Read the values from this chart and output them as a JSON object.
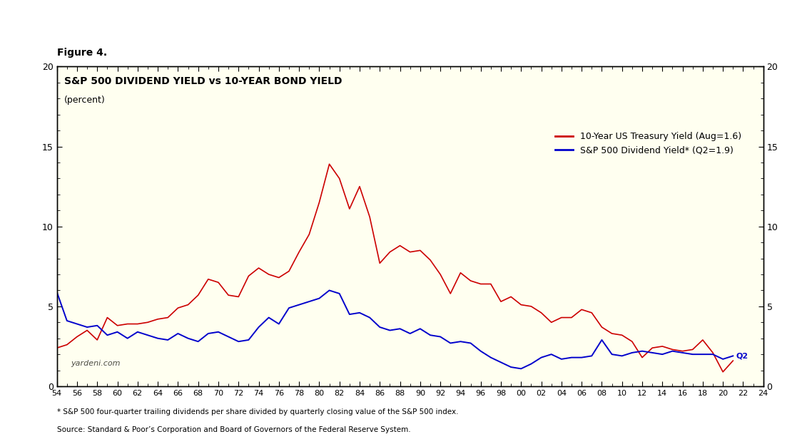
{
  "title": "Figure 4.",
  "chart_title": "S&P 500 DIVIDEND YIELD vs 10-YEAR BOND YIELD",
  "subtitle": "(percent)",
  "background_color": "#FFFFF0",
  "outer_background": "#FFFFFF",
  "xlim": [
    1954,
    2024
  ],
  "ylim": [
    0,
    20
  ],
  "xticks": [
    54,
    56,
    58,
    60,
    62,
    64,
    66,
    68,
    70,
    72,
    74,
    76,
    78,
    80,
    82,
    84,
    86,
    88,
    90,
    92,
    94,
    96,
    98,
    100,
    102,
    104,
    106,
    108,
    110,
    112,
    114,
    116,
    118,
    120,
    122,
    124
  ],
  "xtick_labels": [
    "54",
    "56",
    "58",
    "60",
    "62",
    "64",
    "66",
    "68",
    "70",
    "72",
    "74",
    "76",
    "78",
    "80",
    "82",
    "84",
    "86",
    "88",
    "90",
    "92",
    "94",
    "96",
    "98",
    "00",
    "02",
    "04",
    "06",
    "08",
    "10",
    "12",
    "14",
    "16",
    "18",
    "20",
    "22",
    "24"
  ],
  "yticks": [
    0,
    5,
    10,
    15,
    20
  ],
  "watermark": "yardeni.com",
  "footnote1": "* S&P 500 four-quarter trailing dividends per share divided by quarterly closing value of the S&P 500 index.",
  "footnote2": "Source: Standard & Poor’s Corporation and Board of Governors of the Federal Reserve System.",
  "legend_treasury": "10-Year US Treasury Yield (Aug=1.6)",
  "legend_sp500": "S&P 500 Dividend Yield* (Q2=1.9)",
  "q2_label": "Q2",
  "treasury_color": "#CC0000",
  "sp500_color": "#0000CC",
  "treasury_x": [
    1954,
    1955,
    1956,
    1957,
    1958,
    1959,
    1960,
    1961,
    1962,
    1963,
    1964,
    1965,
    1966,
    1967,
    1968,
    1969,
    1970,
    1971,
    1972,
    1973,
    1974,
    1975,
    1976,
    1977,
    1978,
    1979,
    1980,
    1981,
    1982,
    1983,
    1984,
    1985,
    1986,
    1987,
    1988,
    1989,
    1990,
    1991,
    1992,
    1993,
    1994,
    1995,
    1996,
    1997,
    1998,
    1999,
    2000,
    2001,
    2002,
    2003,
    2004,
    2005,
    2006,
    2007,
    2008,
    2009,
    2010,
    2011,
    2012,
    2013,
    2014,
    2015,
    2016,
    2017,
    2018,
    2019,
    2020,
    2021
  ],
  "treasury_y": [
    2.4,
    2.6,
    3.1,
    3.5,
    2.9,
    4.3,
    3.8,
    3.9,
    3.9,
    4.0,
    4.2,
    4.3,
    4.9,
    5.1,
    5.7,
    6.7,
    6.5,
    5.7,
    5.6,
    6.9,
    7.4,
    7.0,
    6.8,
    7.2,
    8.4,
    9.5,
    11.5,
    13.9,
    13.0,
    11.1,
    12.5,
    10.6,
    7.7,
    8.4,
    8.8,
    8.4,
    8.5,
    7.9,
    7.0,
    5.8,
    7.1,
    6.6,
    6.4,
    6.4,
    5.3,
    5.6,
    5.1,
    5.0,
    4.6,
    4.0,
    4.3,
    4.3,
    4.8,
    4.6,
    3.7,
    3.3,
    3.2,
    2.8,
    1.8,
    2.4,
    2.5,
    2.3,
    2.2,
    2.3,
    2.9,
    2.1,
    0.9,
    1.6
  ],
  "sp500_x": [
    1954,
    1955,
    1956,
    1957,
    1958,
    1959,
    1960,
    1961,
    1962,
    1963,
    1964,
    1965,
    1966,
    1967,
    1968,
    1969,
    1970,
    1971,
    1972,
    1973,
    1974,
    1975,
    1976,
    1977,
    1978,
    1979,
    1980,
    1981,
    1982,
    1983,
    1984,
    1985,
    1986,
    1987,
    1988,
    1989,
    1990,
    1991,
    1992,
    1993,
    1994,
    1995,
    1996,
    1997,
    1998,
    1999,
    2000,
    2001,
    2002,
    2003,
    2004,
    2005,
    2006,
    2007,
    2008,
    2009,
    2010,
    2011,
    2012,
    2013,
    2014,
    2015,
    2016,
    2017,
    2018,
    2019,
    2020,
    2021
  ],
  "sp500_y": [
    5.9,
    4.1,
    3.9,
    3.7,
    3.8,
    3.2,
    3.4,
    3.0,
    3.4,
    3.2,
    3.0,
    2.9,
    3.3,
    3.0,
    2.8,
    3.3,
    3.4,
    3.1,
    2.8,
    2.9,
    3.7,
    4.3,
    3.9,
    4.9,
    5.1,
    5.3,
    5.5,
    6.0,
    5.8,
    4.5,
    4.6,
    4.3,
    3.7,
    3.5,
    3.6,
    3.3,
    3.6,
    3.2,
    3.1,
    2.7,
    2.8,
    2.7,
    2.2,
    1.8,
    1.5,
    1.2,
    1.1,
    1.4,
    1.8,
    2.0,
    1.7,
    1.8,
    1.8,
    1.9,
    2.9,
    2.0,
    1.9,
    2.1,
    2.2,
    2.1,
    2.0,
    2.2,
    2.1,
    2.0,
    2.0,
    2.0,
    1.7,
    1.9
  ]
}
